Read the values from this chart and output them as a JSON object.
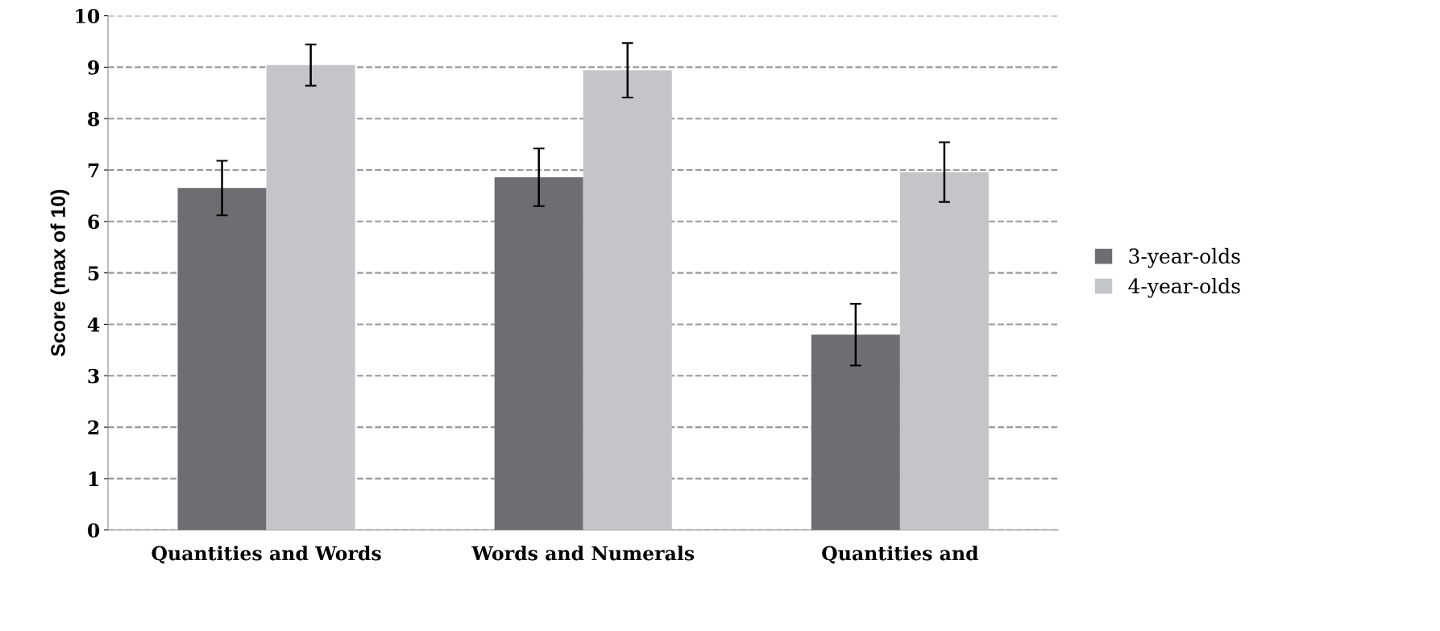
{
  "chart_data": {
    "type": "bar",
    "ylabel": "Score (max of 10)",
    "categories": [
      "Quantities and Words",
      "Words and Numerals",
      "Quantities and"
    ],
    "series": [
      {
        "name": "3-year-olds",
        "color": "#6d6e72",
        "values": [
          6.65,
          6.86,
          3.8
        ],
        "errors": [
          0.53,
          0.56,
          0.6
        ]
      },
      {
        "name": "4-year-olds",
        "color": "#c4c5c9",
        "values": [
          9.04,
          8.94,
          6.96
        ],
        "errors": [
          0.4,
          0.53,
          0.58
        ]
      }
    ],
    "ylim": [
      0,
      10
    ],
    "yticks": [
      0,
      1,
      2,
      3,
      4,
      5,
      6,
      7,
      8,
      9,
      10
    ],
    "grid": "y",
    "legend": "right"
  }
}
